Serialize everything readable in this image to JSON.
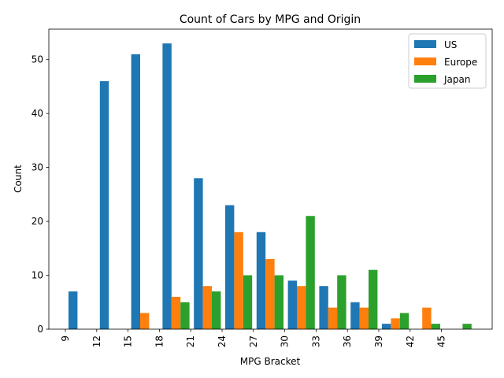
{
  "chart_data": {
    "type": "bar",
    "title": "Count of Cars by MPG and Origin",
    "xlabel": "MPG Bracket",
    "ylabel": "Count",
    "categories": [
      "9",
      "12",
      "15",
      "18",
      "21",
      "24",
      "27",
      "30",
      "33",
      "36",
      "39",
      "42",
      "45"
    ],
    "ylim": [
      0,
      55.65
    ],
    "yticks": [
      0,
      10,
      20,
      30,
      40,
      50
    ],
    "grid": false,
    "legend_position": "top-right",
    "series": [
      {
        "name": "US",
        "color": "#1f77b4",
        "values": [
          7,
          46,
          51,
          53,
          28,
          23,
          18,
          9,
          8,
          5,
          1,
          0,
          0
        ]
      },
      {
        "name": "Europe",
        "color": "#ff7f0e",
        "values": [
          0,
          0,
          3,
          6,
          8,
          18,
          13,
          8,
          4,
          4,
          2,
          4,
          0
        ]
      },
      {
        "name": "Japan",
        "color": "#2ca02c",
        "values": [
          0,
          0,
          0,
          5,
          7,
          10,
          10,
          21,
          10,
          11,
          3,
          1,
          1
        ]
      }
    ]
  }
}
